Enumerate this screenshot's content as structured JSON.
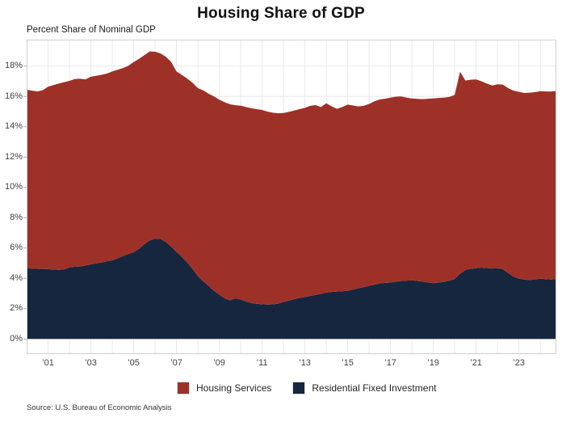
{
  "title": "Housing Share of GDP",
  "subtitle": "Percent Share of Nominal GDP",
  "source": "Source: U.S. Bureau of Economic Analysis",
  "colors": {
    "housing_services": "#9e3127",
    "residential_fixed_investment": "#16263e",
    "gridline": "#e8e8e8",
    "plot_border": "#cfcfcf",
    "axis_tick": "#b0b0b0"
  },
  "legend": [
    {
      "label": "Housing Services",
      "color": "#9e3127"
    },
    {
      "label": "Residential Fixed Investment",
      "color": "#16263e"
    }
  ],
  "chart_data": {
    "type": "area",
    "stacked": true,
    "title": "Housing Share of GDP",
    "ylabel": "Percent Share of Nominal GDP",
    "xlabel": "",
    "grid": true,
    "legend_position": "bottom",
    "x_start_year": 2000,
    "x_step_years": 0.25,
    "xlim": [
      2000,
      2024.75
    ],
    "ylim": [
      -1.0,
      19.75
    ],
    "x_grid_start": 2001,
    "x_grid_end": 2024,
    "x_grid_step": 1,
    "x_tick_years": [
      2001,
      2003,
      2005,
      2007,
      2009,
      2011,
      2013,
      2015,
      2017,
      2019,
      2021,
      2023
    ],
    "x_tick_labels": [
      "’01",
      "’03",
      "’05",
      "’07",
      "’09",
      "’11",
      "’13",
      "’15",
      "’17",
      "’19",
      "’21",
      "’23"
    ],
    "y_ticks": [
      0,
      2,
      4,
      6,
      8,
      10,
      12,
      14,
      16,
      18
    ],
    "y_tick_labels": [
      "0%",
      "2%",
      "4%",
      "6%",
      "8%",
      "10%",
      "12%",
      "14%",
      "16%",
      "18%"
    ],
    "series": [
      {
        "name": "Residential Fixed Investment",
        "color": "#16263e",
        "values": [
          4.66,
          4.64,
          4.62,
          4.62,
          4.61,
          4.58,
          4.56,
          4.58,
          4.73,
          4.76,
          4.78,
          4.85,
          4.92,
          4.98,
          5.05,
          5.12,
          5.19,
          5.33,
          5.47,
          5.6,
          5.72,
          5.95,
          6.25,
          6.5,
          6.62,
          6.6,
          6.4,
          6.1,
          5.75,
          5.42,
          5.05,
          4.62,
          4.15,
          3.8,
          3.5,
          3.18,
          2.92,
          2.68,
          2.55,
          2.68,
          2.6,
          2.47,
          2.37,
          2.32,
          2.29,
          2.27,
          2.28,
          2.33,
          2.44,
          2.53,
          2.63,
          2.7,
          2.76,
          2.84,
          2.9,
          2.98,
          3.06,
          3.1,
          3.13,
          3.15,
          3.18,
          3.26,
          3.34,
          3.42,
          3.5,
          3.58,
          3.66,
          3.7,
          3.72,
          3.78,
          3.82,
          3.85,
          3.86,
          3.83,
          3.79,
          3.73,
          3.68,
          3.72,
          3.77,
          3.85,
          3.95,
          4.3,
          4.55,
          4.63,
          4.67,
          4.71,
          4.68,
          4.65,
          4.66,
          4.6,
          4.35,
          4.12,
          3.98,
          3.92,
          3.89,
          3.92,
          3.98,
          3.95,
          3.92,
          3.95
        ]
      },
      {
        "name": "Housing Services",
        "color": "#9e3127",
        "values": [
          11.79,
          11.74,
          11.71,
          11.79,
          12.03,
          12.17,
          12.29,
          12.36,
          12.3,
          12.39,
          12.39,
          12.27,
          12.38,
          12.38,
          12.38,
          12.39,
          12.46,
          12.43,
          12.4,
          12.42,
          12.55,
          12.53,
          12.47,
          12.47,
          12.33,
          12.24,
          12.22,
          12.18,
          11.9,
          12.0,
          12.13,
          12.28,
          12.4,
          12.6,
          12.68,
          12.82,
          12.87,
          12.94,
          12.93,
          12.74,
          12.79,
          12.83,
          12.85,
          12.84,
          12.82,
          12.73,
          12.65,
          12.56,
          12.47,
          12.45,
          12.44,
          12.46,
          12.49,
          12.54,
          12.53,
          12.32,
          12.49,
          12.25,
          12.05,
          12.15,
          12.28,
          12.14,
          12.0,
          11.96,
          12.0,
          12.1,
          12.14,
          12.15,
          12.2,
          12.2,
          12.18,
          12.07,
          12.01,
          12.01,
          12.03,
          12.12,
          12.19,
          12.18,
          12.15,
          12.12,
          12.15,
          13.33,
          12.5,
          12.47,
          12.45,
          12.29,
          12.17,
          12.07,
          12.14,
          12.18,
          12.2,
          12.26,
          12.32,
          12.31,
          12.36,
          12.36,
          12.37,
          12.38,
          12.4,
          12.42
        ]
      }
    ]
  }
}
